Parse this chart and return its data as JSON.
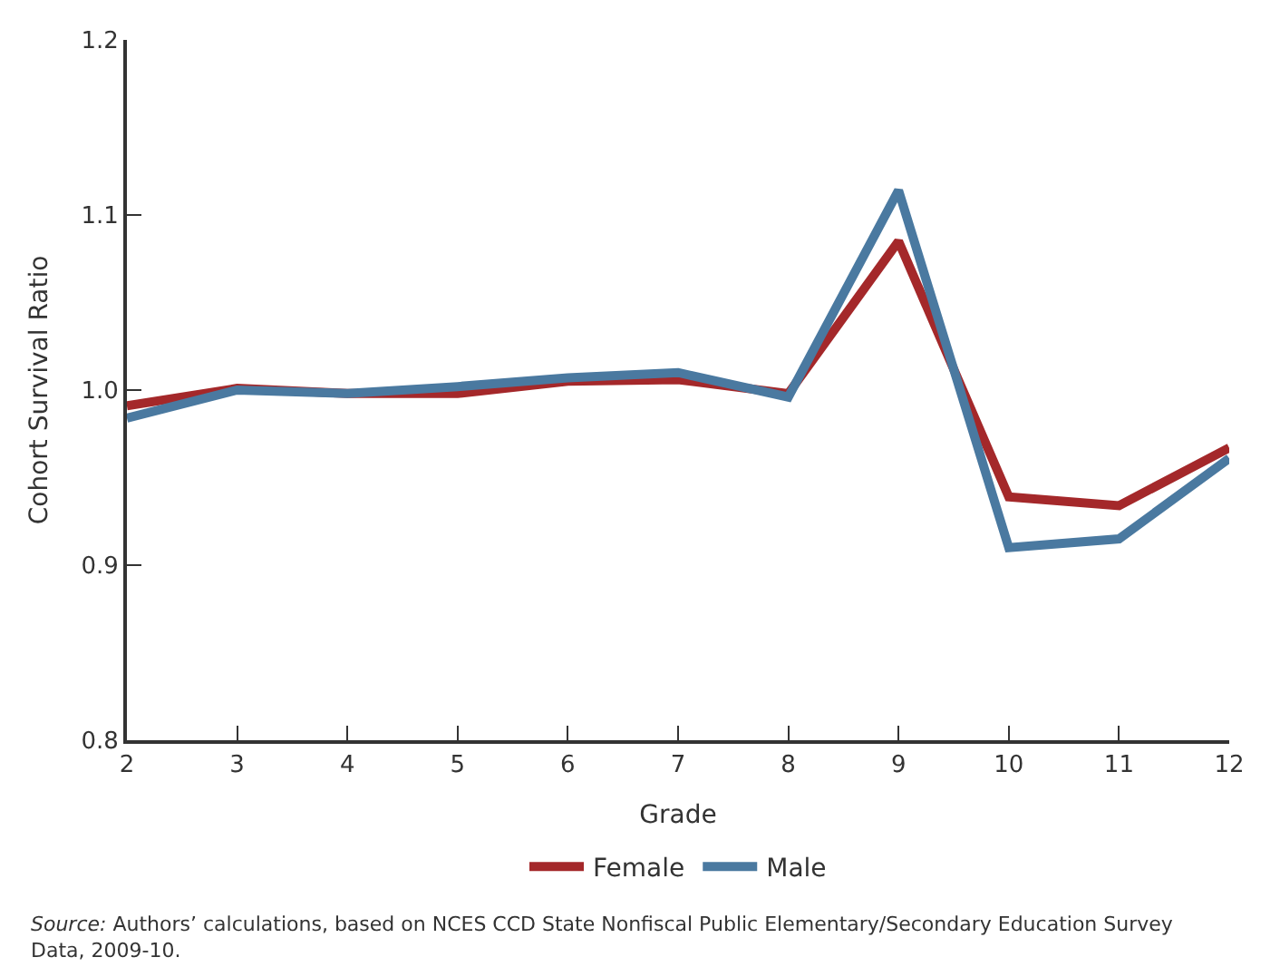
{
  "chart_data": {
    "type": "line",
    "xlabel": "Grade",
    "ylabel": "Cohort Survival Ratio",
    "x": [
      2,
      3,
      4,
      5,
      6,
      7,
      8,
      9,
      10,
      11,
      12
    ],
    "series": [
      {
        "name": "Female",
        "color": "#a4282a",
        "values": [
          0.991,
          1.001,
          0.998,
          0.998,
          1.005,
          1.006,
          0.998,
          1.085,
          0.939,
          0.934,
          0.967
        ]
      },
      {
        "name": "Male",
        "color": "#4a79a0",
        "values": [
          0.984,
          1.0,
          0.998,
          1.002,
          1.007,
          1.01,
          0.996,
          1.114,
          0.91,
          0.915,
          0.961
        ]
      }
    ],
    "xlim": [
      2,
      12
    ],
    "xticks": [
      2,
      3,
      4,
      5,
      6,
      7,
      8,
      9,
      10,
      11,
      12
    ],
    "ylim": [
      0.8,
      1.2
    ],
    "yticks": [
      {
        "value": 0.8,
        "label": "0.8"
      },
      {
        "value": 0.9,
        "label": "0.9"
      },
      {
        "value": 1.0,
        "label": "1.0"
      },
      {
        "value": 1.1,
        "label": "1.1"
      },
      {
        "value": 1.2,
        "label": "1.2"
      }
    ],
    "legend": "bottom",
    "marker": "none",
    "line_style": "solid",
    "annotations": [
      "Source: Authors’ calculations, based on NCES CCD State Nonfiscal Public Elementary/Secondary Education Survey Data, 2009-10."
    ]
  }
}
